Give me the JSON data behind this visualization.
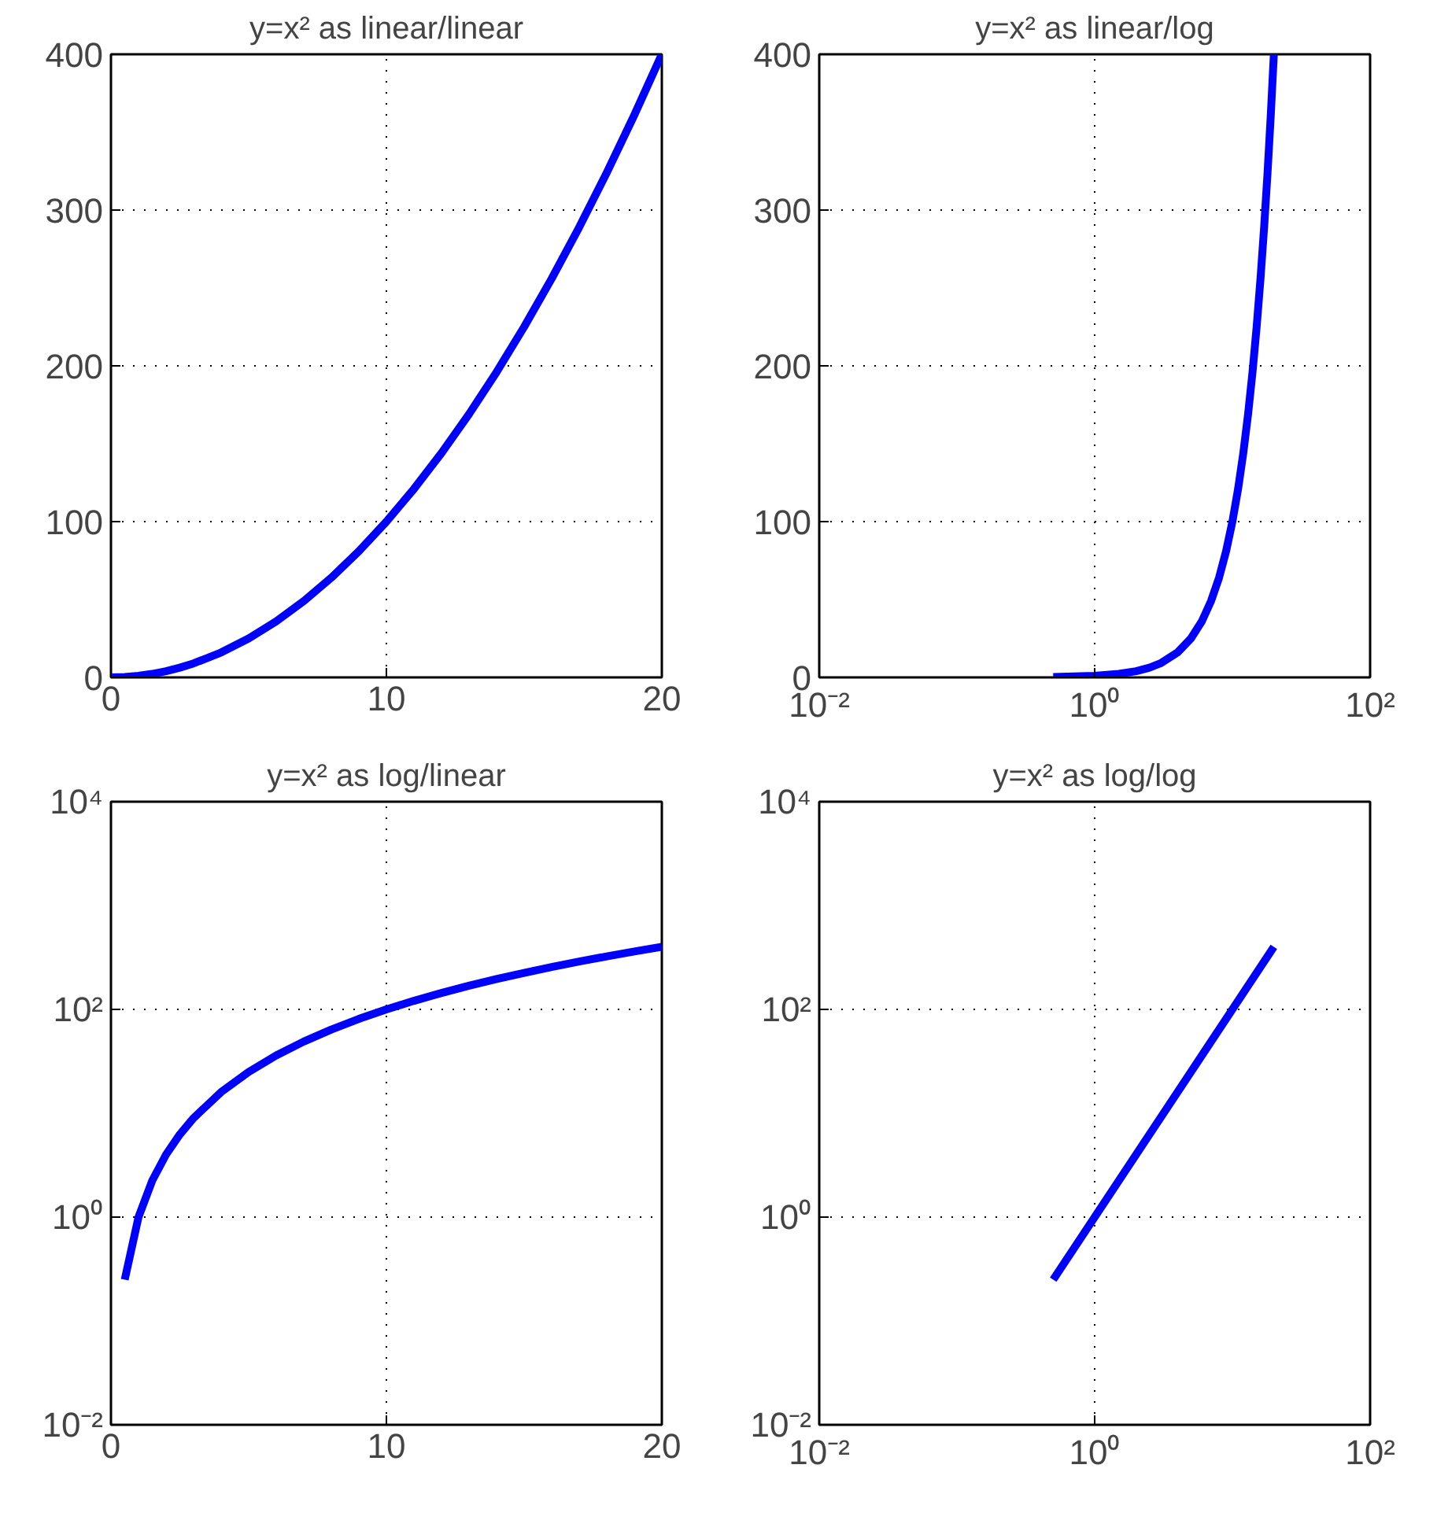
{
  "chart_data": [
    {
      "type": "line",
      "title": "y=x² as linear/linear",
      "x": [
        0,
        0.5,
        1,
        1.5,
        2,
        2.5,
        3,
        4,
        5,
        6,
        7,
        8,
        9,
        10,
        11,
        12,
        13,
        14,
        15,
        16,
        17,
        18,
        19,
        20
      ],
      "values": [
        0,
        0.25,
        1,
        2.25,
        4,
        6.25,
        9,
        16,
        25,
        36,
        49,
        64,
        81,
        100,
        121,
        144,
        169,
        196,
        225,
        256,
        289,
        324,
        361,
        400
      ],
      "color": "#0000ff",
      "xlim": [
        0,
        20
      ],
      "ylim": [
        0,
        400
      ],
      "xticks": [
        0,
        10,
        20
      ],
      "yticks": [
        0,
        100,
        200,
        300,
        400
      ],
      "grid": true
    },
    {
      "type": "line",
      "title": "y=x² as linear/log",
      "x": [
        0.5,
        1,
        1.5,
        2,
        2.5,
        3,
        4,
        5,
        6,
        7,
        8,
        9,
        10,
        11,
        12,
        13,
        14,
        15,
        16,
        17,
        18,
        19,
        20
      ],
      "values": [
        0.25,
        1,
        2.25,
        4,
        6.25,
        9,
        16,
        25,
        36,
        49,
        64,
        81,
        100,
        121,
        144,
        169,
        196,
        225,
        256,
        289,
        324,
        361,
        400
      ],
      "color": "#0000ff",
      "log": "x",
      "xlim": [
        0.01,
        100
      ],
      "ylim": [
        0,
        400
      ],
      "xticks": [
        {
          "value": 0.01,
          "label": "10⁻²"
        },
        {
          "value": 1,
          "label": "10⁰"
        },
        {
          "value": 100,
          "label": "10²"
        }
      ],
      "yticks": [
        0,
        100,
        200,
        300,
        400
      ],
      "grid": true
    },
    {
      "type": "line",
      "title": "y=x² as log/linear",
      "x": [
        0.5,
        1,
        1.5,
        2,
        2.5,
        3,
        4,
        5,
        6,
        7,
        8,
        9,
        10,
        11,
        12,
        13,
        14,
        15,
        16,
        17,
        18,
        19,
        20
      ],
      "values": [
        0.25,
        1,
        2.25,
        4,
        6.25,
        9,
        16,
        25,
        36,
        49,
        64,
        81,
        100,
        121,
        144,
        169,
        196,
        225,
        256,
        289,
        324,
        361,
        400
      ],
      "color": "#0000ff",
      "log": "y",
      "xlim": [
        0,
        20
      ],
      "ylim": [
        0.01,
        10000
      ],
      "xticks": [
        0,
        10,
        20
      ],
      "yticks": [
        {
          "value": 0.01,
          "label": "10⁻²"
        },
        {
          "value": 1,
          "label": "10⁰"
        },
        {
          "value": 100,
          "label": "10²"
        },
        {
          "value": 10000,
          "label": "10⁴"
        }
      ],
      "grid": true
    },
    {
      "type": "line",
      "title": "y=x² as log/log",
      "x": [
        0.5,
        1,
        2,
        5,
        10,
        20
      ],
      "values": [
        0.25,
        1,
        4,
        25,
        100,
        400
      ],
      "color": "#0000ff",
      "log": "xy",
      "xlim": [
        0.01,
        100
      ],
      "ylim": [
        0.01,
        10000
      ],
      "xticks": [
        {
          "value": 0.01,
          "label": "10⁻²"
        },
        {
          "value": 1,
          "label": "10⁰"
        },
        {
          "value": 100,
          "label": "10²"
        }
      ],
      "yticks": [
        {
          "value": 0.01,
          "label": "10⁻²"
        },
        {
          "value": 1,
          "label": "10⁰"
        },
        {
          "value": 100,
          "label": "10²"
        },
        {
          "value": 10000,
          "label": "10⁴"
        }
      ],
      "grid": true
    }
  ]
}
